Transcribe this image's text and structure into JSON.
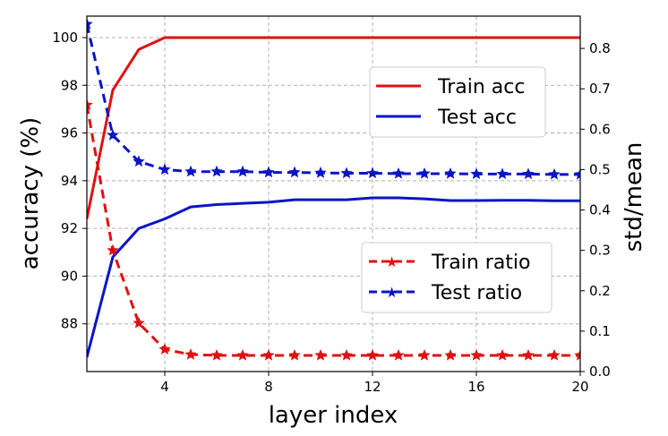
{
  "chart_data": {
    "type": "line",
    "title": "",
    "xlabel": "layer index",
    "ylabel_left": "accuracy (%)",
    "ylabel_right": "std/mean",
    "xlim": [
      1,
      20
    ],
    "ylim_left": [
      86.0,
      100.9
    ],
    "ylim_right": [
      0.0,
      0.88
    ],
    "xticks": [
      4,
      8,
      12,
      16,
      20
    ],
    "yticks_left": [
      88,
      90,
      92,
      94,
      96,
      98,
      100
    ],
    "yticks_right": [
      0.0,
      0.1,
      0.2,
      0.3,
      0.4,
      0.5,
      0.6,
      0.7,
      0.8
    ],
    "grid": true,
    "x": [
      1,
      2,
      3,
      4,
      5,
      6,
      7,
      8,
      9,
      10,
      11,
      12,
      13,
      14,
      15,
      16,
      17,
      18,
      19,
      20
    ],
    "series": [
      {
        "name": "Train acc",
        "axis": "left",
        "style": "solid",
        "marker": "none",
        "color": "#e01010",
        "values": [
          92.4,
          97.8,
          99.5,
          100,
          100,
          100,
          100,
          100,
          100,
          100,
          100,
          100,
          100,
          100,
          100,
          100,
          100,
          100,
          100,
          100
        ]
      },
      {
        "name": "Test acc",
        "axis": "left",
        "style": "solid",
        "marker": "none",
        "color": "#0a14c8",
        "values": [
          86.6,
          90.8,
          92.0,
          92.4,
          92.9,
          93.0,
          93.05,
          93.1,
          93.2,
          93.2,
          93.2,
          93.28,
          93.28,
          93.24,
          93.17,
          93.17,
          93.18,
          93.18,
          93.16,
          93.16
        ]
      },
      {
        "name": "Train ratio",
        "axis": "right",
        "style": "dashed",
        "marker": "star",
        "color": "#e01010",
        "values": [
          0.66,
          0.3,
          0.12,
          0.055,
          0.042,
          0.04,
          0.04,
          0.04,
          0.04,
          0.04,
          0.04,
          0.04,
          0.04,
          0.04,
          0.04,
          0.04,
          0.04,
          0.04,
          0.04,
          0.04
        ]
      },
      {
        "name": "Test ratio",
        "axis": "right",
        "style": "dashed",
        "marker": "star",
        "color": "#0a14c8",
        "values": [
          0.86,
          0.585,
          0.52,
          0.5,
          0.495,
          0.495,
          0.495,
          0.493,
          0.493,
          0.492,
          0.491,
          0.491,
          0.49,
          0.49,
          0.49,
          0.489,
          0.489,
          0.489,
          0.488,
          0.488
        ]
      }
    ],
    "legends": [
      {
        "placement": "upper-right",
        "entries": [
          "Train acc",
          "Test acc"
        ]
      },
      {
        "placement": "lower-right",
        "entries": [
          "Train ratio",
          "Test ratio"
        ]
      }
    ]
  }
}
